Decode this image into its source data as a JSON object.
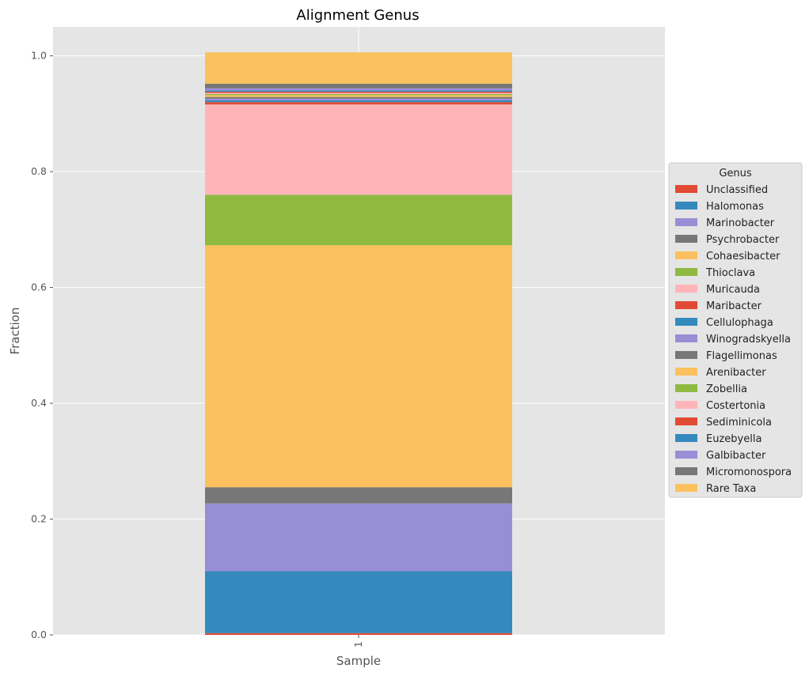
{
  "chart_data": {
    "type": "bar",
    "stacked": true,
    "title": "Alignment Genus",
    "xlabel": "Sample",
    "ylabel": "Fraction",
    "categories": [
      "1"
    ],
    "ylim": [
      0,
      1.05
    ],
    "yticks": [
      "0.0",
      "0.2",
      "0.4",
      "0.6",
      "0.8",
      "1.0"
    ],
    "grid": true,
    "legend_title": "Genus",
    "legend_position": "center-right, outside plot",
    "series": [
      {
        "name": "Unclassified",
        "values": [
          0.003
        ],
        "color": "#E24A33"
      },
      {
        "name": "Halomonas",
        "values": [
          0.107
        ],
        "color": "#348ABD"
      },
      {
        "name": "Marinobacter",
        "values": [
          0.117
        ],
        "color": "#988ED5"
      },
      {
        "name": "Psychrobacter",
        "values": [
          0.028
        ],
        "color": "#777777"
      },
      {
        "name": "Cohaesibacter",
        "values": [
          0.418
        ],
        "color": "#FBC15E"
      },
      {
        "name": "Thioclava",
        "values": [
          0.087
        ],
        "color": "#8EBA42"
      },
      {
        "name": "Muricauda",
        "values": [
          0.156
        ],
        "color": "#FFB5B8"
      },
      {
        "name": "Maribacter",
        "values": [
          0.004
        ],
        "color": "#E24A33"
      },
      {
        "name": "Cellulophaga",
        "values": [
          0.003
        ],
        "color": "#348ABD"
      },
      {
        "name": "Winogradskyella",
        "values": [
          0.003
        ],
        "color": "#988ED5"
      },
      {
        "name": "Flagellimonas",
        "values": [
          0.003
        ],
        "color": "#777777"
      },
      {
        "name": "Arenibacter",
        "values": [
          0.003
        ],
        "color": "#FBC15E"
      },
      {
        "name": "Zobellia",
        "values": [
          0.002
        ],
        "color": "#8EBA42"
      },
      {
        "name": "Costertonia",
        "values": [
          0.002
        ],
        "color": "#FFB5B8"
      },
      {
        "name": "Sediminicola",
        "values": [
          0.002
        ],
        "color": "#E24A33"
      },
      {
        "name": "Euzebyella",
        "values": [
          0.002
        ],
        "color": "#348ABD"
      },
      {
        "name": "Galbibacter",
        "values": [
          0.004
        ],
        "color": "#988ED5"
      },
      {
        "name": "Micromonospora",
        "values": [
          0.008
        ],
        "color": "#777777"
      },
      {
        "name": "Rare Taxa",
        "values": [
          0.054
        ],
        "color": "#FBC15E"
      }
    ]
  }
}
